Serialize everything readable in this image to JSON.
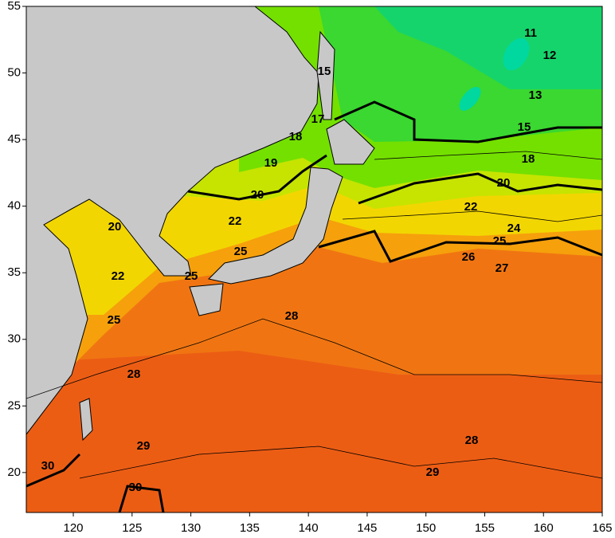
{
  "map": {
    "xlim": [
      116,
      165
    ],
    "ylim": [
      17,
      55
    ],
    "xticks": [
      120,
      125,
      130,
      135,
      140,
      145,
      150,
      155,
      160,
      165
    ],
    "yticks": [
      20,
      25,
      30,
      35,
      40,
      45,
      50,
      55
    ],
    "contour_labels": [
      11,
      12,
      13,
      15,
      17,
      18,
      19,
      20,
      15,
      18,
      20,
      22,
      24,
      25,
      26,
      27,
      20,
      22,
      25,
      22,
      25,
      25,
      28,
      28,
      28,
      29,
      29,
      30,
      30
    ]
  }
}
